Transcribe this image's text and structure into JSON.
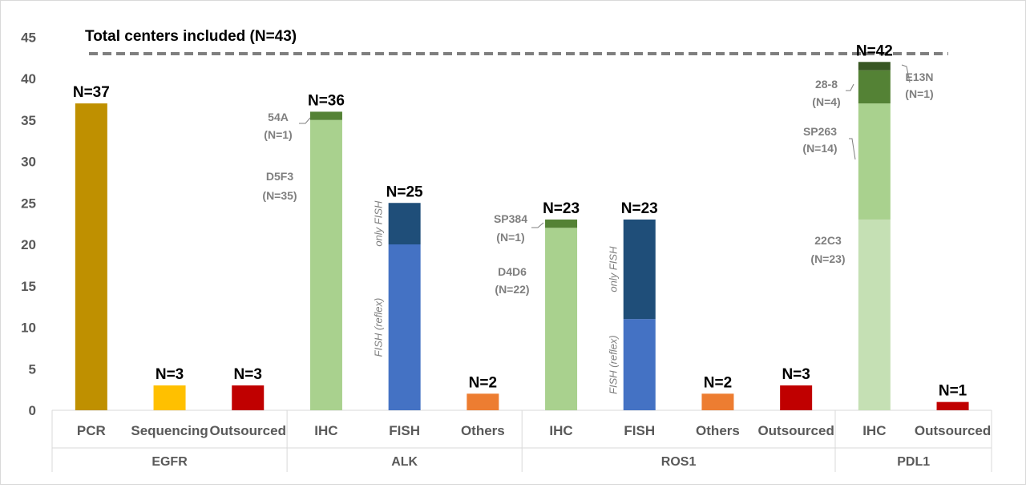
{
  "chart_data": {
    "type": "bar",
    "stacked": true,
    "title": "",
    "reference_line": {
      "label": "Total centers included (N=43)",
      "value": 43,
      "style": "dashed"
    },
    "ylim": [
      0,
      45
    ],
    "yticks": [
      "0",
      "5",
      "10",
      "15",
      "20",
      "25",
      "30",
      "35",
      "40",
      "45"
    ],
    "groups": [
      {
        "name": "EGFR",
        "categories": [
          "PCR",
          "Sequencing",
          "Outsourced"
        ]
      },
      {
        "name": "ALK",
        "categories": [
          "IHC",
          "FISH",
          "Others"
        ]
      },
      {
        "name": "ROS1",
        "categories": [
          "IHC",
          "FISH",
          "Others",
          "Outsourced"
        ]
      },
      {
        "name": "PDL1",
        "categories": [
          "IHC",
          "Outsourced"
        ]
      }
    ],
    "bars": [
      {
        "category": "PCR",
        "group": "EGFR",
        "total": 37,
        "total_label": "N=37",
        "segments": [
          {
            "value": 37,
            "color": "#bf9000"
          }
        ]
      },
      {
        "category": "Sequencing",
        "group": "EGFR",
        "total": 3,
        "total_label": "N=3",
        "segments": [
          {
            "value": 3,
            "color": "#ffc000"
          }
        ]
      },
      {
        "category": "Outsourced",
        "group": "EGFR",
        "total": 3,
        "total_label": "N=3",
        "segments": [
          {
            "value": 3,
            "color": "#c00000"
          }
        ]
      },
      {
        "category": "IHC",
        "group": "ALK",
        "total": 36,
        "total_label": "N=36",
        "segments": [
          {
            "value": 35,
            "color": "#a9d18e",
            "label": "D5F3",
            "label2": "(N=35)"
          },
          {
            "value": 1,
            "color": "#548235",
            "label": "54A",
            "label2": "(N=1)"
          }
        ]
      },
      {
        "category": "FISH",
        "group": "ALK",
        "total": 25,
        "total_label": "N=25",
        "segments": [
          {
            "value": 20,
            "color": "#4472c4",
            "rot_label": "FISH (reflex)"
          },
          {
            "value": 5,
            "color": "#1f4e79",
            "rot_label": "only FISH"
          }
        ]
      },
      {
        "category": "Others",
        "group": "ALK",
        "total": 2,
        "total_label": "N=2",
        "segments": [
          {
            "value": 2,
            "color": "#ed7d31"
          }
        ]
      },
      {
        "category": "IHC",
        "group": "ROS1",
        "total": 23,
        "total_label": "N=23",
        "segments": [
          {
            "value": 22,
            "color": "#a9d18e",
            "label": "D4D6",
            "label2": "(N=22)"
          },
          {
            "value": 1,
            "color": "#548235",
            "label": "SP384",
            "label2": "(N=1)"
          }
        ]
      },
      {
        "category": "FISH",
        "group": "ROS1",
        "total": 23,
        "total_label": "N=23",
        "segments": [
          {
            "value": 11,
            "color": "#4472c4",
            "rot_label": "FISH (reflex)"
          },
          {
            "value": 12,
            "color": "#1f4e79",
            "rot_label": "only FISH"
          }
        ]
      },
      {
        "category": "Others",
        "group": "ROS1",
        "total": 2,
        "total_label": "N=2",
        "segments": [
          {
            "value": 2,
            "color": "#ed7d31"
          }
        ]
      },
      {
        "category": "Outsourced",
        "group": "ROS1",
        "total": 3,
        "total_label": "N=3",
        "segments": [
          {
            "value": 3,
            "color": "#c00000"
          }
        ]
      },
      {
        "category": "IHC",
        "group": "PDL1",
        "total": 42,
        "total_label": "N=42",
        "segments": [
          {
            "value": 23,
            "color": "#c5e0b4",
            "label": "22C3",
            "label2": "(N=23)"
          },
          {
            "value": 14,
            "color": "#a9d18e",
            "label": "SP263",
            "label2": "(N=14)"
          },
          {
            "value": 4,
            "color": "#548235",
            "label": "28-8",
            "label2": "(N=4)"
          },
          {
            "value": 1,
            "color": "#385723",
            "label": "E13N",
            "label2": "(N=1)"
          }
        ]
      },
      {
        "category": "Outsourced",
        "group": "PDL1",
        "total": 1,
        "total_label": "N=1",
        "segments": [
          {
            "value": 1,
            "color": "#c00000"
          }
        ]
      }
    ]
  }
}
